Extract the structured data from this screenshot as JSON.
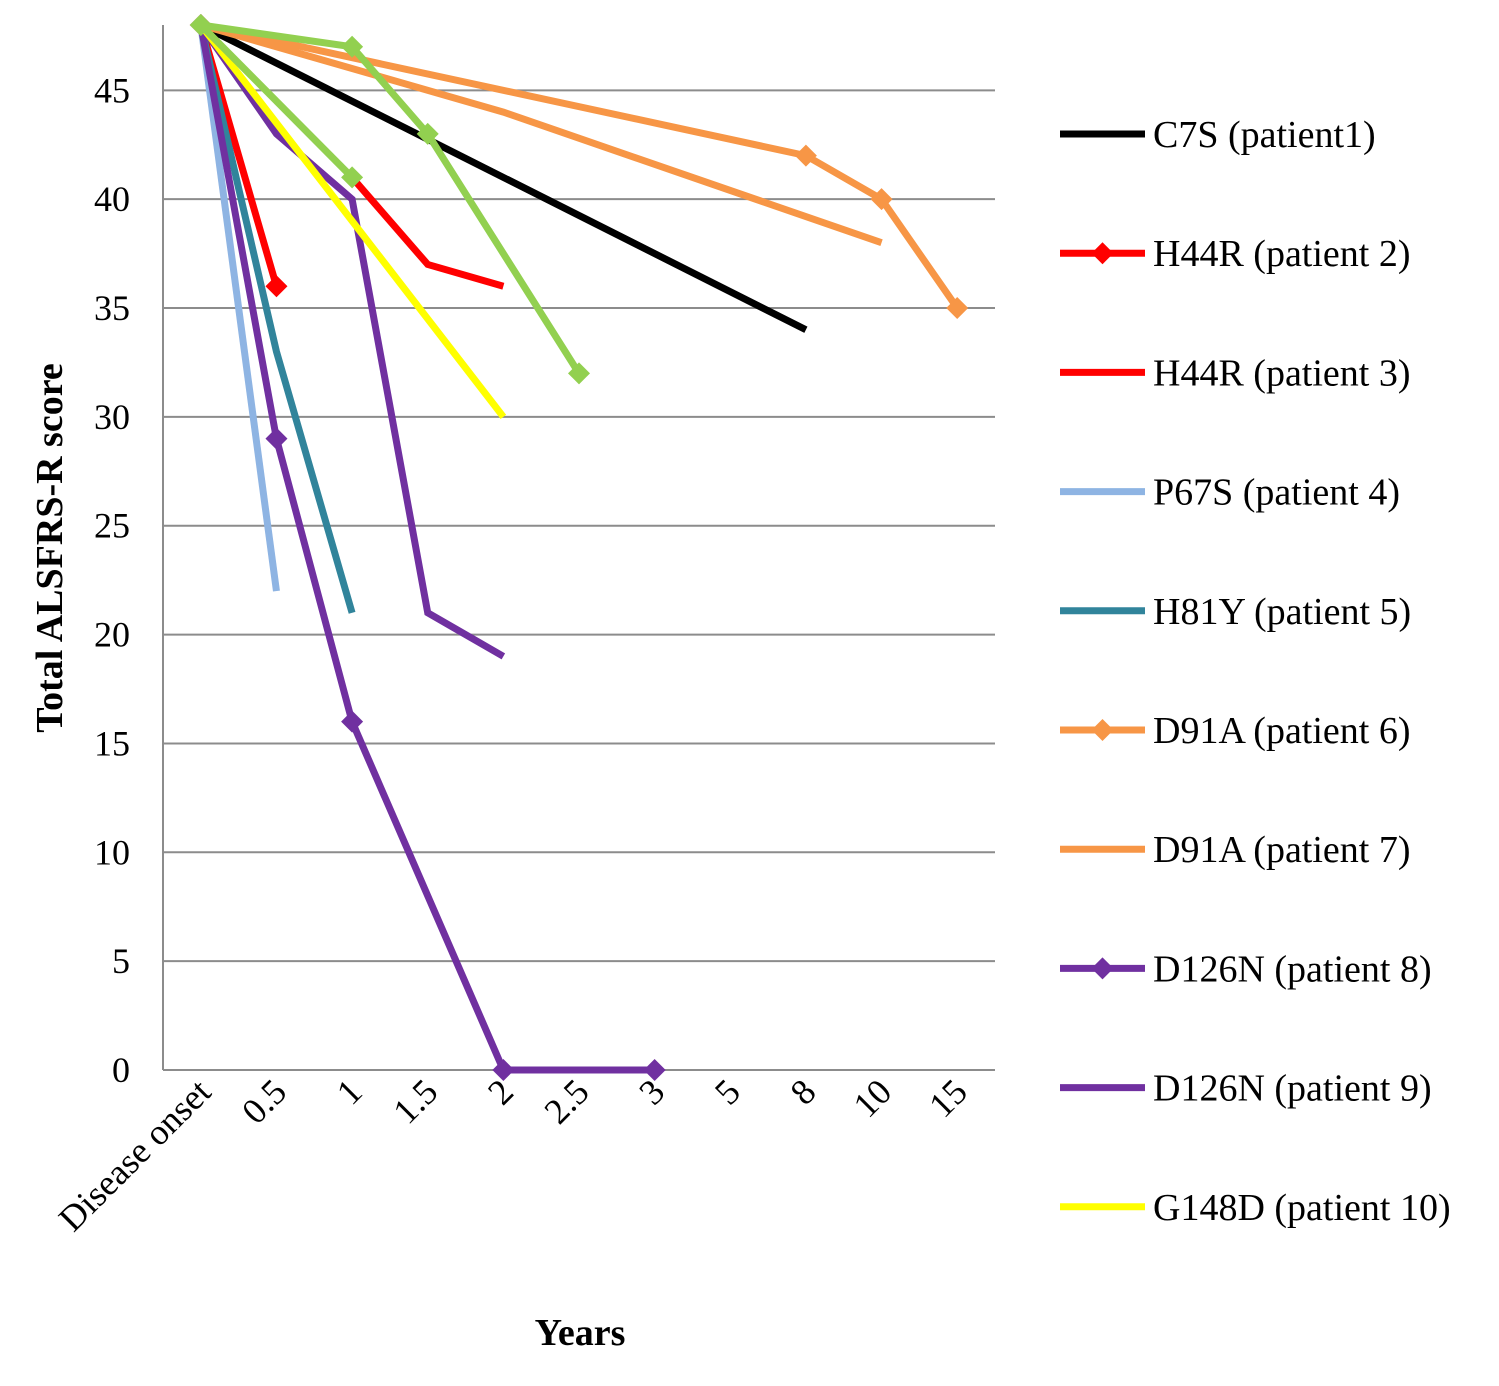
{
  "chart_data": {
    "type": "line",
    "xlabel": "Years",
    "ylabel": "Total ALSFRS-R score",
    "categories": [
      "Disease onset",
      "0.5",
      "1",
      "1.5",
      "2",
      "2.5",
      "3",
      "5",
      "8",
      "10",
      "15"
    ],
    "y_ticks": [
      0,
      5,
      10,
      15,
      20,
      25,
      30,
      35,
      40,
      45
    ],
    "ylim": [
      0,
      48
    ],
    "grid": true,
    "legend_position": "right",
    "series": [
      {
        "name": "C7S (patient1)",
        "color": "#000000",
        "marker": "none",
        "points": [
          [
            "Disease onset",
            48
          ],
          [
            "8",
            34
          ]
        ]
      },
      {
        "name": "H44R (patient 2)",
        "color": "#ff0000",
        "marker": "diamond",
        "points": [
          [
            "Disease onset",
            48
          ],
          [
            "0.5",
            36
          ]
        ]
      },
      {
        "name": "H44R (patient 3)",
        "color": "#ff0000",
        "marker": "none",
        "points": [
          [
            "1",
            41
          ],
          [
            "1.5",
            37
          ],
          [
            "2",
            36
          ]
        ]
      },
      {
        "name": "P67S (patient 4)",
        "color": "#8eb4e3",
        "marker": "none",
        "points": [
          [
            "Disease onset",
            48
          ],
          [
            "0.5",
            22
          ]
        ]
      },
      {
        "name": "H81Y (patient 5)",
        "color": "#31849b",
        "marker": "none",
        "points": [
          [
            "Disease onset",
            48
          ],
          [
            "0.5",
            33
          ],
          [
            "1",
            21
          ]
        ]
      },
      {
        "name": "D91A (patient 6)",
        "color": "#f79646",
        "marker": "diamond",
        "points": [
          [
            "Disease onset",
            48
          ],
          [
            "8",
            42
          ],
          [
            "10",
            40
          ],
          [
            "15",
            35
          ]
        ]
      },
      {
        "name": "D91A (patient 7)",
        "color": "#f79646",
        "marker": "none",
        "points": [
          [
            "Disease onset",
            48
          ],
          [
            "2",
            44
          ],
          [
            "10",
            38
          ]
        ]
      },
      {
        "name": "D126N (patient 8)",
        "color": "#7030a0",
        "marker": "diamond",
        "points": [
          [
            "Disease onset",
            48
          ],
          [
            "0.5",
            29
          ],
          [
            "1",
            16
          ],
          [
            "2",
            0
          ],
          [
            "3",
            0
          ]
        ]
      },
      {
        "name": "D126N (patient 9)",
        "color": "#7030a0",
        "marker": "none",
        "points": [
          [
            "Disease onset",
            48
          ],
          [
            "0.5",
            43
          ],
          [
            "1",
            40
          ],
          [
            "1.5",
            21
          ],
          [
            "2",
            19
          ]
        ]
      },
      {
        "name": "G148D (patient 10)",
        "color": "#ffff00",
        "marker": "none",
        "points": [
          [
            "Disease onset",
            48
          ],
          [
            "2",
            30
          ]
        ]
      },
      {
        "name": "",
        "color": "#92d050",
        "marker": "diamond",
        "points": [
          [
            "Disease onset",
            48
          ],
          [
            "1",
            47
          ],
          [
            "1.5",
            43
          ],
          [
            "2.5",
            32
          ]
        ]
      },
      {
        "name": "",
        "color": "#92d050",
        "marker": "diamond",
        "points": [
          [
            "Disease onset",
            48
          ],
          [
            "1",
            41
          ]
        ]
      }
    ]
  }
}
